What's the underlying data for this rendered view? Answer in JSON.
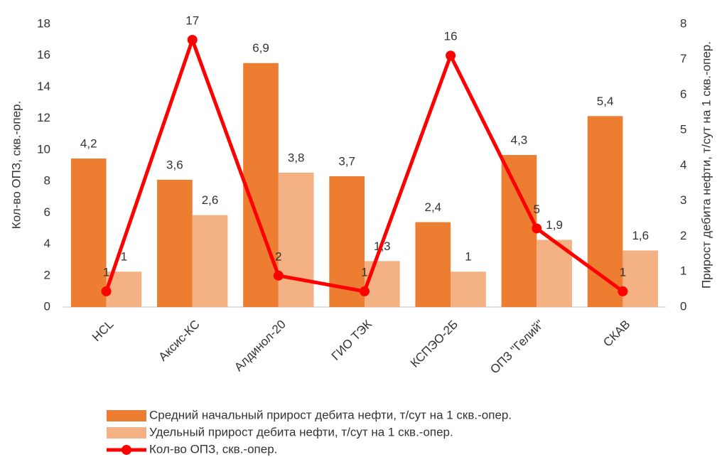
{
  "chart_data": {
    "type": "bar_line",
    "categories": [
      "HCL",
      "Аксис-КС",
      "Алдинол-20",
      "ГИО ТЭК",
      "КСПЭО-2Б",
      "ОПЗ \"Гелий\"",
      "СКАВ"
    ],
    "ylabel": "Кол-во ОПЗ, скв.-опер.",
    "y2label": "Прирост дебита нефти, т/сут на 1 скв.-опер.",
    "ylim": [
      0,
      18
    ],
    "yticks": [
      0,
      2,
      4,
      6,
      8,
      10,
      12,
      14,
      16,
      18
    ],
    "y2lim": [
      0,
      8
    ],
    "y2ticks": [
      0,
      1,
      2,
      3,
      4,
      5,
      6,
      7,
      8
    ],
    "series": [
      {
        "name": "Средний начальный прирост дебита нефти, т/сут на 1 скв.-опер.",
        "type": "bar",
        "axis": "y2",
        "color": "#ed7d31",
        "values": [
          4.2,
          3.6,
          6.9,
          3.7,
          2.4,
          4.3,
          5.4
        ],
        "value_labels": [
          "4,2",
          "3,6",
          "6,9",
          "3,7",
          "2,4",
          "4,3",
          "5,4"
        ]
      },
      {
        "name": "Удельный прирост дебита нефти, т/сут на 1 скв.-опер.",
        "type": "bar",
        "axis": "y2",
        "color": "#f4b183",
        "values": [
          1,
          2.6,
          3.8,
          1.3,
          1,
          1.9,
          1.6
        ],
        "value_labels": [
          "1",
          "2,6",
          "3,8",
          "1,3",
          "1",
          "1,9",
          "1,6"
        ]
      },
      {
        "name": "Кол-во ОПЗ, скв.-опер.",
        "type": "line",
        "color": "#ff0000",
        "values": [
          1,
          17,
          2,
          1,
          16,
          5,
          1
        ]
      }
    ]
  }
}
